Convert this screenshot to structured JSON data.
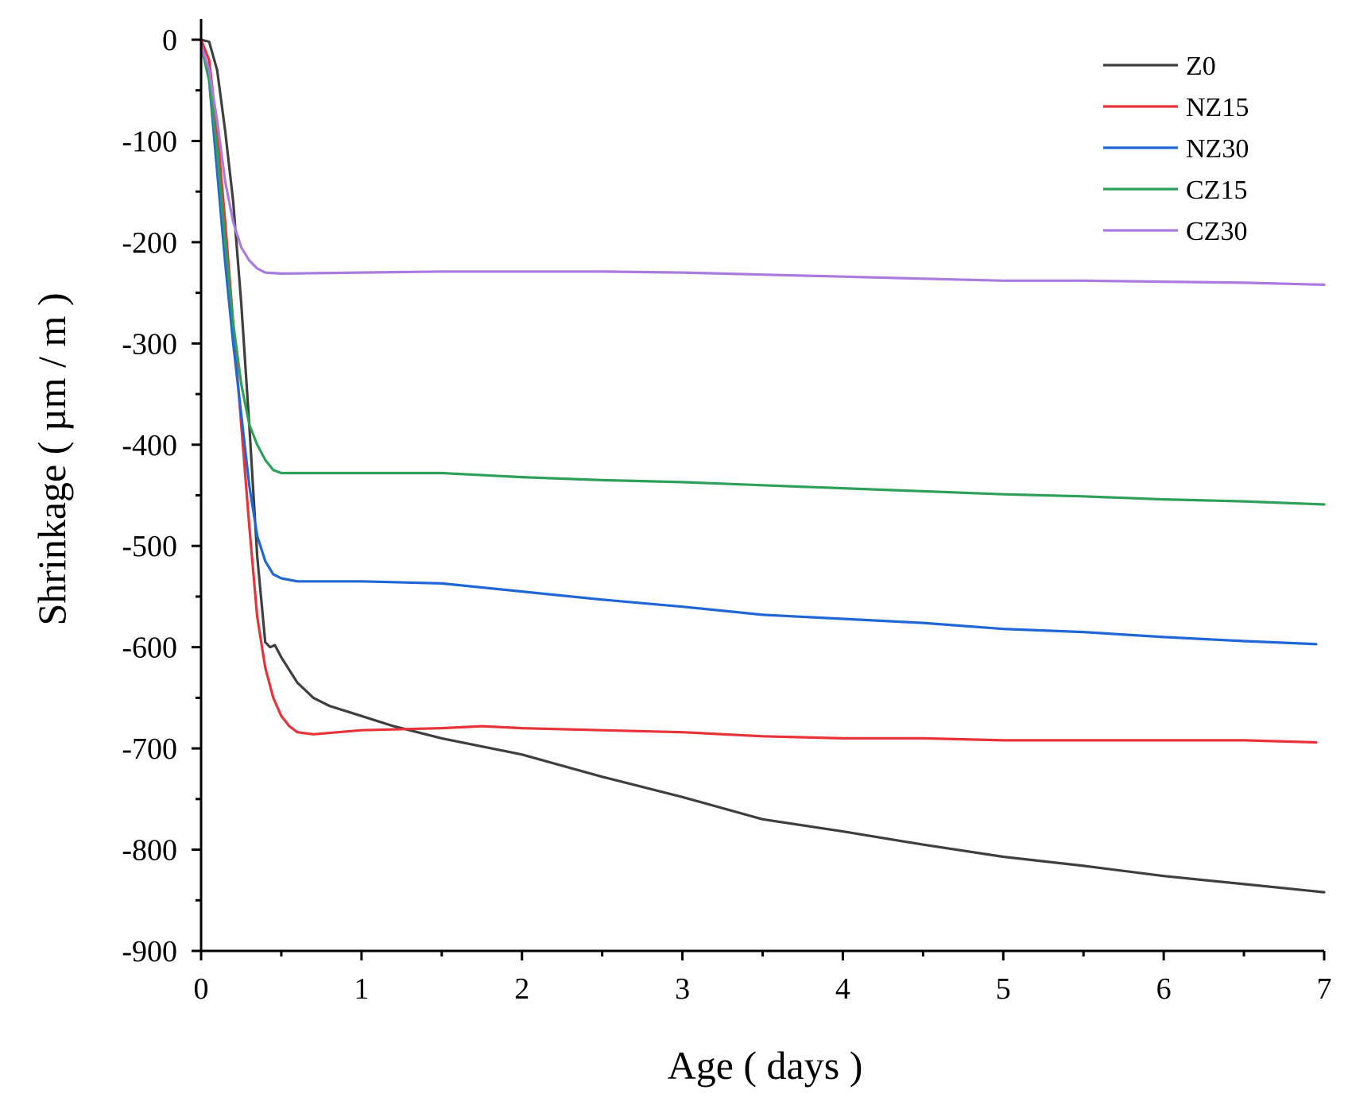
{
  "chart_data": {
    "type": "line",
    "title": "",
    "xlabel": "Age ( days )",
    "ylabel": "Shrinkage ( µm / m )",
    "xlim": [
      0,
      7
    ],
    "ylim": [
      -900,
      20
    ],
    "x_ticks": [
      0,
      1,
      2,
      3,
      4,
      5,
      6,
      7
    ],
    "x_tick_labels": [
      "0",
      "1",
      "2",
      "3",
      "4",
      "5",
      "6",
      "7"
    ],
    "y_ticks": [
      0,
      -100,
      -200,
      -300,
      -400,
      -500,
      -600,
      -700,
      -800,
      -900
    ],
    "y_tick_labels": [
      "0",
      "-100",
      "-200",
      "-300",
      "-400",
      "-500",
      "-600",
      "-700",
      "-800",
      "-900"
    ],
    "grid": false,
    "legend_position": "top-right",
    "series": [
      {
        "name": "Z0",
        "color": "#3f3f3f",
        "x": [
          0,
          0.05,
          0.1,
          0.15,
          0.2,
          0.25,
          0.3,
          0.35,
          0.4,
          0.43,
          0.46,
          0.5,
          0.6,
          0.7,
          0.8,
          1.0,
          1.2,
          1.5,
          2.0,
          2.5,
          3.0,
          3.5,
          4.0,
          4.5,
          5.0,
          5.5,
          6.0,
          6.5,
          7.0
        ],
        "y": [
          0,
          -2,
          -30,
          -90,
          -160,
          -260,
          -380,
          -510,
          -595,
          -600,
          -598,
          -610,
          -635,
          -650,
          -658,
          -668,
          -678,
          -690,
          -706,
          -728,
          -748,
          -770,
          -782,
          -795,
          -807,
          -816,
          -826,
          -834,
          -842
        ]
      },
      {
        "name": "NZ15",
        "color": "#e8333a",
        "x": [
          0,
          0.05,
          0.1,
          0.15,
          0.2,
          0.25,
          0.3,
          0.35,
          0.4,
          0.45,
          0.5,
          0.55,
          0.6,
          0.7,
          1.0,
          1.5,
          1.75,
          2.0,
          2.5,
          3.0,
          3.5,
          4.0,
          4.5,
          5.0,
          5.5,
          6.0,
          6.5,
          6.95
        ],
        "y": [
          0,
          -20,
          -90,
          -180,
          -280,
          -380,
          -480,
          -570,
          -620,
          -650,
          -668,
          -678,
          -684,
          -686,
          -682,
          -680,
          -678,
          -680,
          -682,
          -684,
          -688,
          -690,
          -690,
          -692,
          -692,
          -692,
          -692,
          -694
        ]
      },
      {
        "name": "NZ30",
        "color": "#1f66d6",
        "x": [
          0,
          0.05,
          0.1,
          0.15,
          0.2,
          0.25,
          0.3,
          0.35,
          0.4,
          0.45,
          0.5,
          0.6,
          0.8,
          1.0,
          1.5,
          2.0,
          2.5,
          3.0,
          3.5,
          4.0,
          4.5,
          5.0,
          5.5,
          6.0,
          6.5,
          6.95
        ],
        "y": [
          -5,
          -40,
          -130,
          -220,
          -300,
          -370,
          -440,
          -490,
          -515,
          -528,
          -532,
          -535,
          -535,
          -535,
          -537,
          -545,
          -553,
          -560,
          -568,
          -572,
          -576,
          -582,
          -585,
          -590,
          -594,
          -597
        ]
      },
      {
        "name": "CZ15",
        "color": "#2ea05a",
        "x": [
          0,
          0.05,
          0.1,
          0.15,
          0.2,
          0.25,
          0.3,
          0.35,
          0.4,
          0.45,
          0.5,
          0.7,
          1.0,
          1.5,
          2.0,
          2.5,
          3.0,
          3.5,
          4.0,
          4.5,
          5.0,
          5.5,
          6.0,
          6.5,
          7.0
        ],
        "y": [
          -5,
          -40,
          -110,
          -200,
          -280,
          -340,
          -380,
          -400,
          -415,
          -425,
          -428,
          -428,
          -428,
          -428,
          -432,
          -435,
          -437,
          -440,
          -443,
          -446,
          -449,
          -451,
          -454,
          -456,
          -459
        ]
      },
      {
        "name": "CZ30",
        "color": "#a97be0",
        "x": [
          0,
          0.05,
          0.1,
          0.15,
          0.2,
          0.25,
          0.3,
          0.35,
          0.4,
          0.5,
          1.0,
          1.5,
          2.0,
          2.5,
          3.0,
          3.5,
          4.0,
          4.5,
          5.0,
          5.5,
          6.0,
          6.5,
          7.0
        ],
        "y": [
          -5,
          -30,
          -80,
          -140,
          -180,
          -205,
          -218,
          -226,
          -230,
          -231,
          -230,
          -229,
          -229,
          -229,
          -230,
          -232,
          -234,
          -236,
          -238,
          -238,
          -239,
          -240,
          -242
        ]
      }
    ]
  }
}
